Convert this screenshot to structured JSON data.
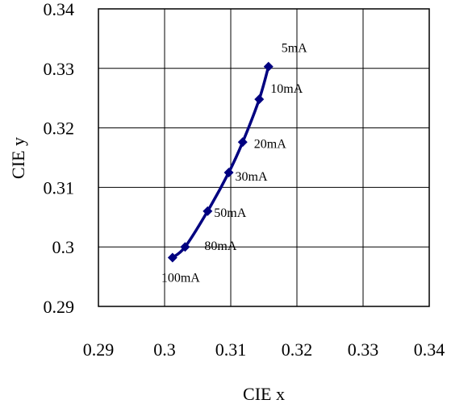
{
  "chart_data": {
    "type": "scatter",
    "title": "",
    "xlabel": "CIE x",
    "ylabel": "CIE y",
    "xlim": [
      0.29,
      0.34
    ],
    "ylim": [
      0.29,
      0.34
    ],
    "x_ticks": [
      "0.29",
      "0.3",
      "0.31",
      "0.32",
      "0.33",
      "0.34"
    ],
    "y_ticks": [
      "0.29",
      "0.3",
      "0.31",
      "0.32",
      "0.33",
      "0.34"
    ],
    "grid": true,
    "series": [
      {
        "color": "#000080",
        "marker": "diamond",
        "line": "smooth",
        "points": [
          {
            "x": 0.3157,
            "y": 0.3303,
            "label": "5mA"
          },
          {
            "x": 0.3143,
            "y": 0.3248,
            "label": "10mA"
          },
          {
            "x": 0.3118,
            "y": 0.3176,
            "label": "20mA"
          },
          {
            "x": 0.3097,
            "y": 0.3125,
            "label": "30mA"
          },
          {
            "x": 0.3065,
            "y": 0.306,
            "label": "50mA"
          },
          {
            "x": 0.3031,
            "y": 0.3,
            "label": "80mA"
          },
          {
            "x": 0.3012,
            "y": 0.2982,
            "label": "100mA"
          }
        ]
      }
    ]
  }
}
